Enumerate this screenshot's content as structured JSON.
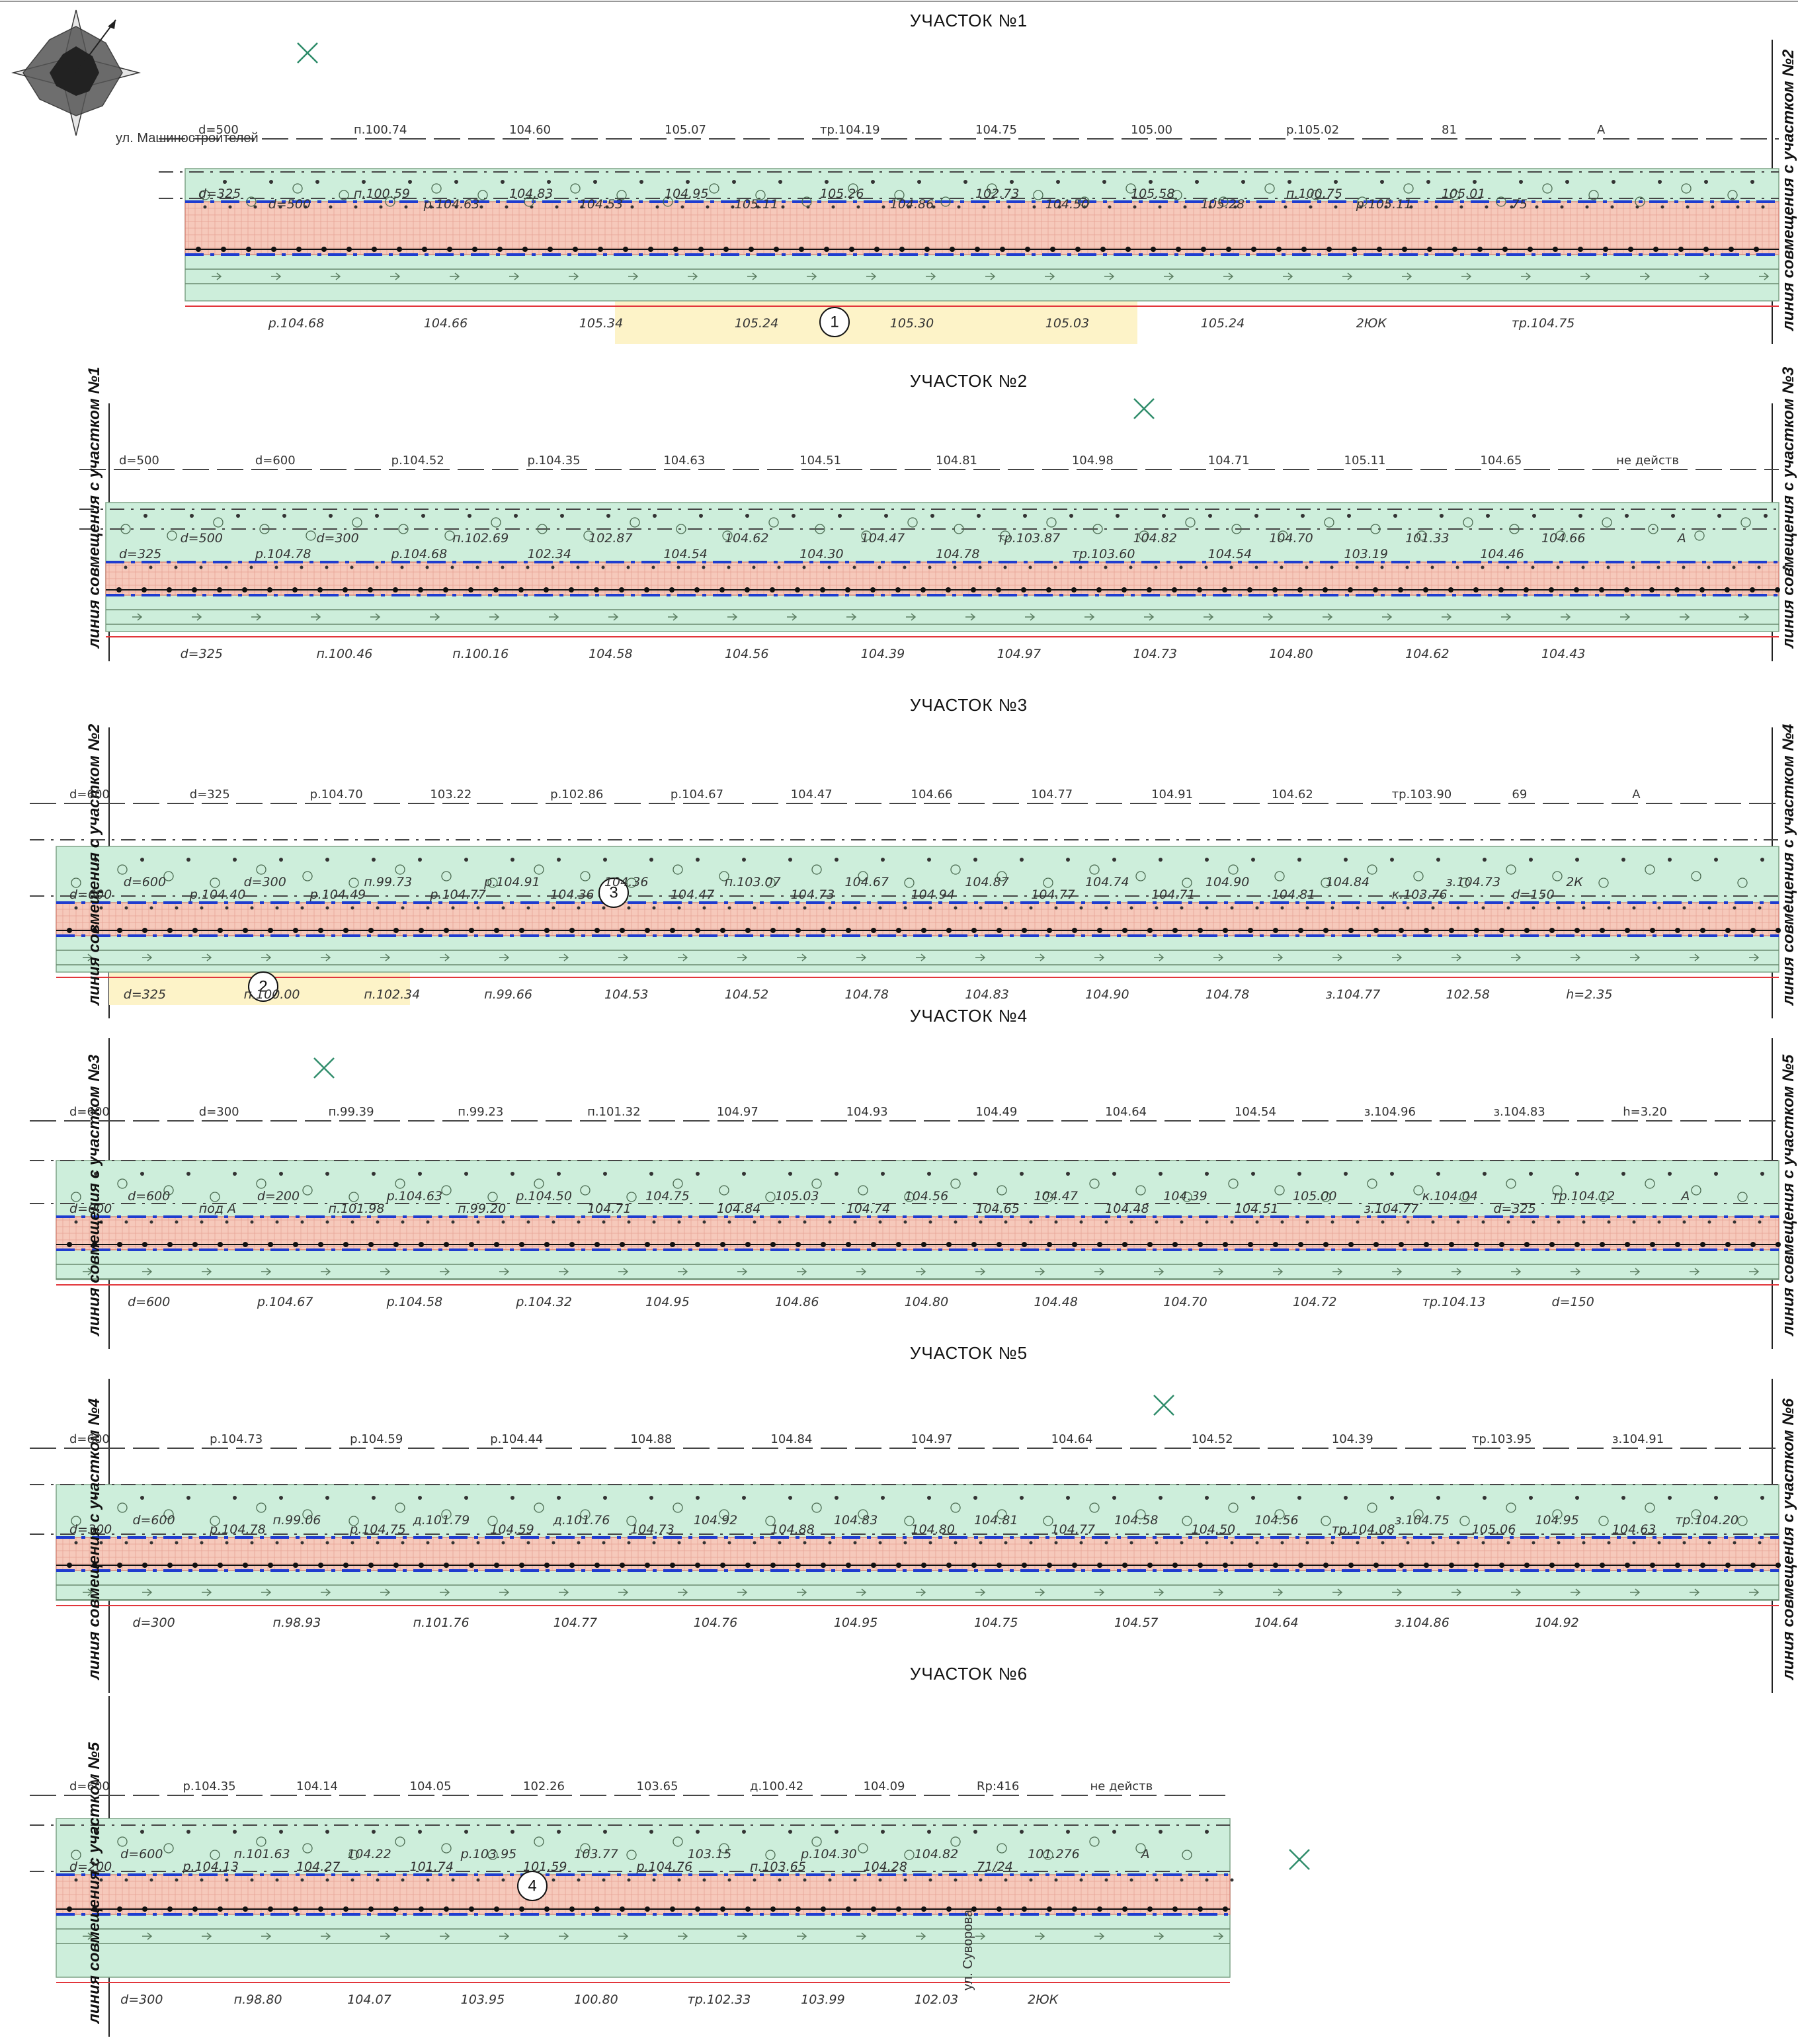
{
  "colors": {
    "green": "#cdeedb",
    "green_edge": "#7fa487",
    "pink": "#f6c9bb",
    "pink_edge": "#d2796c",
    "blue": "#1f3ccf",
    "yellow": "#fdf3c8",
    "red": "#e2363b",
    "line": "#444444"
  },
  "sections": [
    {
      "title": "УЧАСТОК №1",
      "left_label": "",
      "right_label": "линия совмещения с участком №2",
      "street": "ул. Машиностроителей",
      "circle": "1",
      "marks": [
        "d=500",
        "d=500",
        "d=325",
        "р.104.68",
        "п.100.74",
        "р.104.63",
        "п.100.59",
        "104.66",
        "104.60",
        "104.53",
        "104.83",
        "105.34",
        "105.07",
        "105.11",
        "104.95",
        "105.24",
        "тр.104.19",
        "104.86",
        "105.26",
        "105.30",
        "104.75",
        "104.50",
        "102.73",
        "105.03",
        "105.00",
        "105.28",
        "105.58",
        "105.24",
        "р.105.02",
        "р.105.11",
        "п.100.75",
        "2ЮК",
        "81",
        "75",
        "105.01",
        "тр.104.75",
        "А"
      ]
    },
    {
      "title": "УЧАСТОК №2",
      "left_label": "линия совмещения с участком №1",
      "right_label": "линия совмещения с участком №3",
      "marks": [
        "d=500",
        "d=500",
        "d=325",
        "d=325",
        "d=600",
        "d=300",
        "р.104.78",
        "п.100.46",
        "р.104.52",
        "п.102.69",
        "р.104.68",
        "п.100.16",
        "р.104.35",
        "102.87",
        "102.34",
        "104.58",
        "104.63",
        "104.62",
        "104.54",
        "104.56",
        "104.51",
        "104.47",
        "104.30",
        "104.39",
        "104.81",
        "тр.103.87",
        "104.78",
        "104.97",
        "104.98",
        "104.82",
        "тр.103.60",
        "104.73",
        "104.71",
        "104.70",
        "104.54",
        "104.80",
        "105.11",
        "101.33",
        "103.19",
        "104.62",
        "104.65",
        "104.66",
        "104.46",
        "104.43",
        "не действ",
        "А"
      ]
    },
    {
      "title": "УЧАСТОК №3",
      "left_label": "линия совмещения с участком №2",
      "right_label": "линия совмещения с участком №4",
      "circle": "2",
      "circle2": "3",
      "marks": [
        "d=600",
        "d=600",
        "d=600",
        "d=325",
        "d=325",
        "d=300",
        "р.104.40",
        "п.100.00",
        "р.104.70",
        "п.99.73",
        "р.104.49",
        "п.102.34",
        "103.22",
        "р.104.91",
        "р.104.77",
        "п.99.66",
        "р.102.86",
        "104.36",
        "104.36",
        "104.53",
        "р.104.67",
        "п.103.07",
        "104.47",
        "104.52",
        "104.47",
        "104.67",
        "104.73",
        "104.78",
        "104.66",
        "104.87",
        "104.94",
        "104.83",
        "104.77",
        "104.74",
        "104.77",
        "104.90",
        "104.91",
        "104.90",
        "104.71",
        "104.78",
        "104.62",
        "104.84",
        "104.81",
        "з.104.77",
        "тр.103.90",
        "з.104.73",
        "к.103.76",
        "102.58",
        "69",
        "2К",
        "d=150",
        "h=2.35",
        "А"
      ]
    },
    {
      "title": "УЧАСТОК №4",
      "left_label": "линия совмещения с участком №3",
      "right_label": "линия совмещения с участком №5",
      "marks": [
        "d=600",
        "d=600",
        "d=600",
        "d=600",
        "d=300",
        "d=200",
        "под А",
        "р.104.67",
        "п.99.39",
        "р.104.63",
        "п.101.98",
        "р.104.58",
        "п.99.23",
        "р.104.50",
        "п.99.20",
        "р.104.32",
        "п.101.32",
        "104.75",
        "104.71",
        "104.95",
        "104.97",
        "105.03",
        "104.84",
        "104.86",
        "104.93",
        "104.56",
        "104.74",
        "104.80",
        "104.49",
        "104.47",
        "104.65",
        "104.48",
        "104.64",
        "104.39",
        "104.48",
        "104.70",
        "104.54",
        "105.00",
        "104.51",
        "104.72",
        "з.104.96",
        "к.104.04",
        "з.104.77",
        "тр.104.13",
        "з.104.83",
        "тр.104.12",
        "d=325",
        "d=150",
        "h=3.20",
        "А"
      ]
    },
    {
      "title": "УЧАСТОК №5",
      "left_label": "линия совмещения с участком №4",
      "right_label": "линия совмещения с участком №6",
      "marks": [
        "d=600",
        "d=600",
        "d=300",
        "d=300",
        "р.104.73",
        "п.99.06",
        "р.104.78",
        "п.98.93",
        "р.104.59",
        "д.101.79",
        "р.104.75",
        "п.101.76",
        "р.104.44",
        "д.101.76",
        "104.59",
        "104.77",
        "104.88",
        "104.92",
        "104.73",
        "104.76",
        "104.84",
        "104.83",
        "104.88",
        "104.95",
        "104.97",
        "104.81",
        "104.80",
        "104.75",
        "104.64",
        "104.58",
        "104.77",
        "104.57",
        "104.52",
        "104.56",
        "104.50",
        "104.64",
        "104.39",
        "з.104.75",
        "тр.104.08",
        "з.104.86",
        "тр.103.95",
        "104.95",
        "105.06",
        "104.92",
        "з.104.91",
        "тр.104.20",
        "104.63"
      ]
    },
    {
      "title": "УЧАСТОК №6",
      "left_label": "линия совмещения с участком №5",
      "right_label": "",
      "circle": "4",
      "street": "ул. Суворова",
      "marks": [
        "d=600",
        "d=600",
        "d=200",
        "d=300",
        "р.104.35",
        "п.101.63",
        "р.104.13",
        "п.98.80",
        "104.14",
        "104.22",
        "104.27",
        "104.07",
        "104.05",
        "р.103.95",
        "101.74",
        "103.95",
        "102.26",
        "103.77",
        "101.59",
        "100.80",
        "103.65",
        "103.15",
        "р.104.76",
        "тр.102.33",
        "д.100.42",
        "р.104.30",
        "п.103.65",
        "103.99",
        "104.09",
        "104.82",
        "104.28",
        "102.03",
        "Rp:416",
        "101.276",
        "71/24",
        "2ЮК",
        "не действ",
        "А"
      ]
    }
  ]
}
